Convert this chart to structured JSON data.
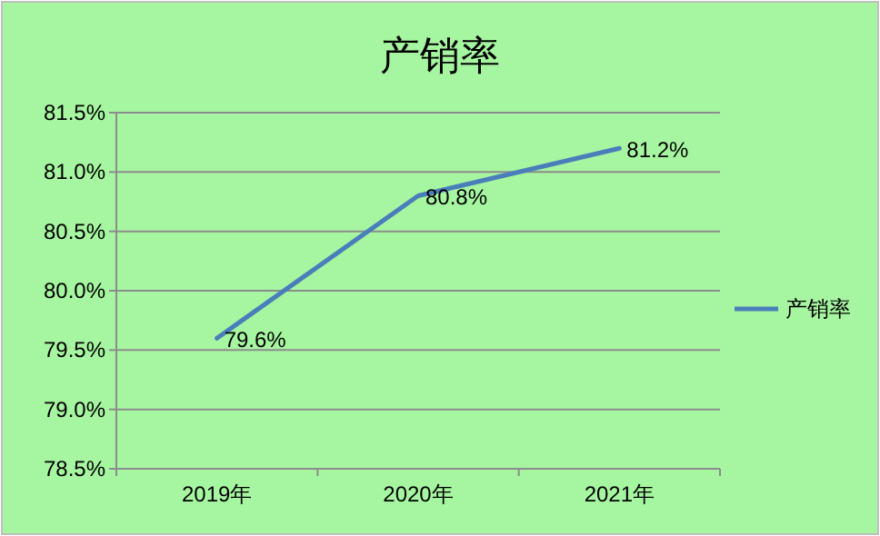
{
  "chart_data": {
    "type": "line",
    "title": "产销率",
    "categories": [
      "2019年",
      "2020年",
      "2021年"
    ],
    "series": [
      {
        "name": "产销率",
        "color": "#4a7ebb",
        "values": [
          79.6,
          80.8,
          81.2
        ],
        "value_labels": [
          "79.6%",
          "80.8%",
          "81.2%"
        ]
      }
    ],
    "ylim": [
      78.5,
      81.5
    ],
    "yticks": [
      {
        "value": 78.5,
        "label": "78.5%"
      },
      {
        "value": 79.0,
        "label": "79.0%"
      },
      {
        "value": 79.5,
        "label": "79.5%"
      },
      {
        "value": 80.0,
        "label": "80.0%"
      },
      {
        "value": 80.5,
        "label": "80.5%"
      },
      {
        "value": 81.0,
        "label": "81.0%"
      },
      {
        "value": 81.5,
        "label": "81.5%"
      }
    ],
    "grid": "y",
    "legend": "right",
    "marker": "none",
    "line_style": "solid"
  }
}
